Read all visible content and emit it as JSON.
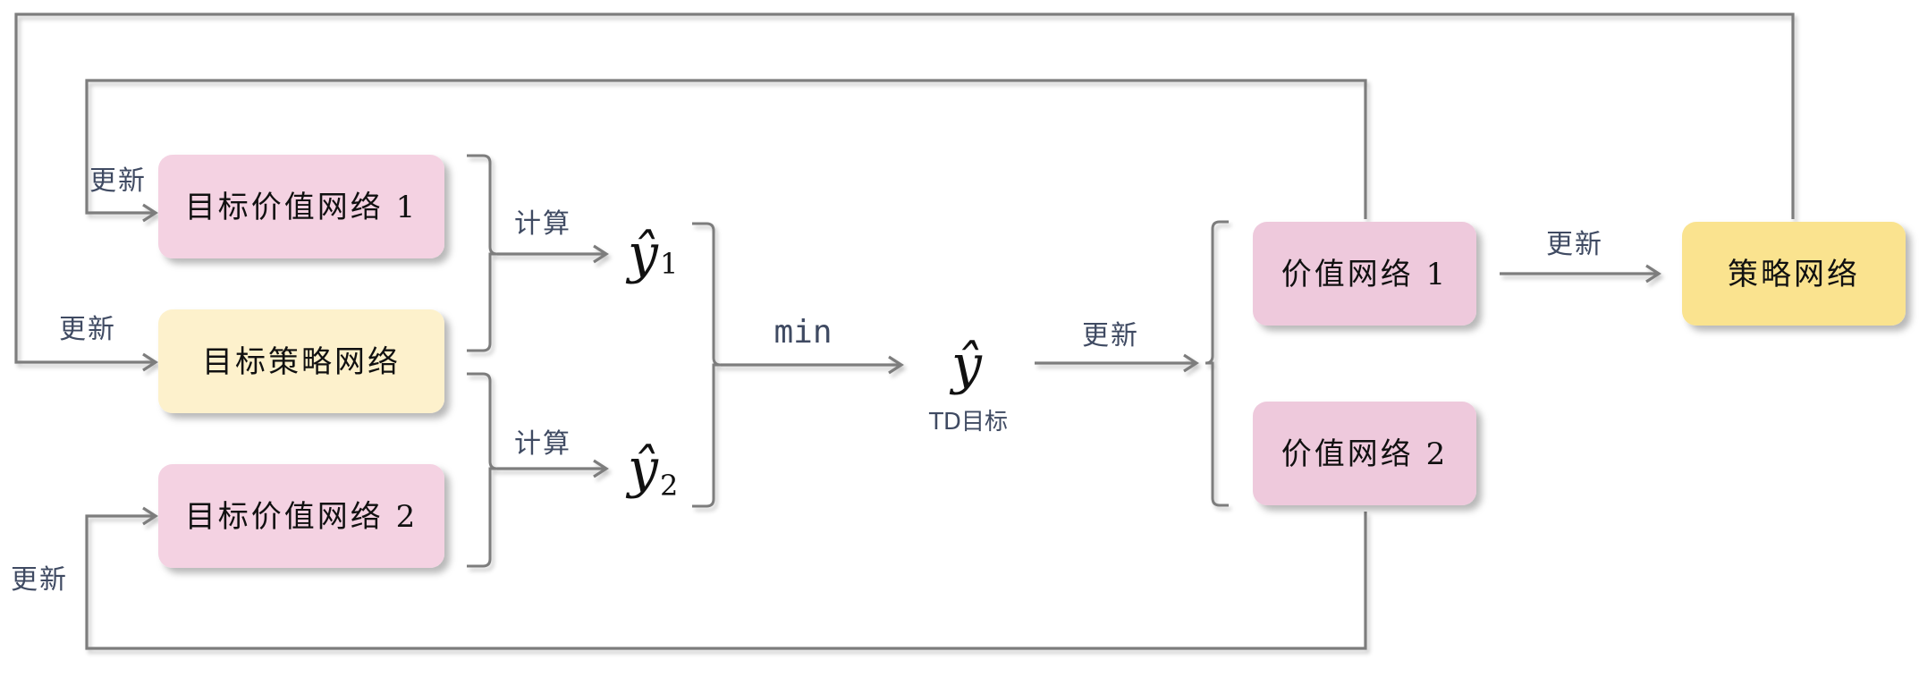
{
  "nodes": {
    "target_value_1": "目标价值网络 1",
    "target_policy": "目标策略网络",
    "target_value_2": "目标价值网络 2",
    "value_1": "价值网络 1",
    "value_2": "价值网络 2",
    "policy": "策略网络"
  },
  "edge_labels": {
    "update_target_value_1": "更新",
    "update_target_policy": "更新",
    "update_target_value_2": "更新",
    "compute_1": "计算",
    "compute_2": "计算",
    "min": "min",
    "update_value": "更新",
    "update_policy": "更新"
  },
  "math": {
    "y_hat": "ŷ",
    "sub_1": "1",
    "sub_2": "2",
    "td_target": "TD目标"
  },
  "colors": {
    "target_value_fill": "#f4d2e2",
    "value_fill": "#eec9dc",
    "target_policy_fill": "#fdf1cc",
    "policy_fill": "#fae38f",
    "connector": "#7d7d7d",
    "label_text": "#3f4a62"
  }
}
